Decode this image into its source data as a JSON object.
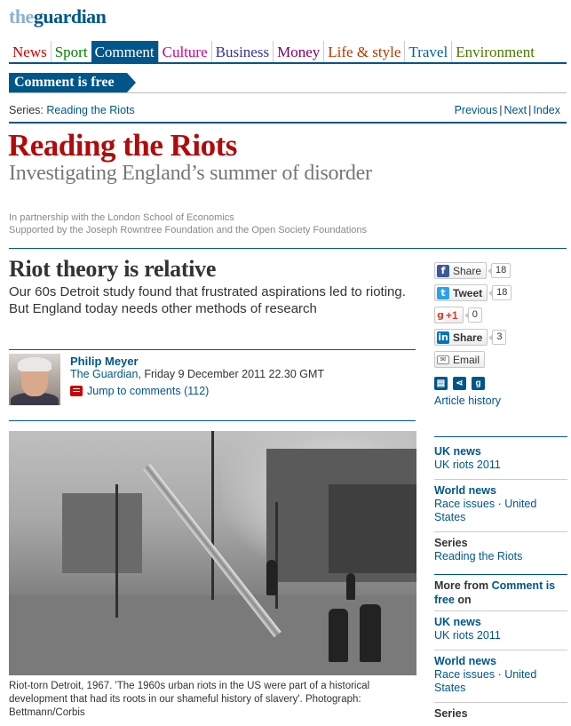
{
  "logo": {
    "the": "the",
    "guardian": "guardian"
  },
  "nav": [
    {
      "label": "News",
      "color": "#c00"
    },
    {
      "label": "Sport",
      "color": "#008000"
    },
    {
      "label": "Comment",
      "color": "#005689",
      "active": true
    },
    {
      "label": "Culture",
      "color": "#d1008b"
    },
    {
      "label": "Business",
      "color": "#333399"
    },
    {
      "label": "Money",
      "color": "#7d0068"
    },
    {
      "label": "Life & style",
      "color": "#ad3c00"
    },
    {
      "label": "Travel",
      "color": "#0061a6"
    },
    {
      "label": "Environment",
      "color": "#4a7801"
    }
  ],
  "section_tag": "Comment is free",
  "series_bar": {
    "label": "Series:",
    "series_link": "Reading the Riots",
    "previous": "Previous",
    "next": "Next",
    "index": "Index"
  },
  "series": {
    "title": "Reading the Riots",
    "subtitle": "Investigating England’s summer of disorder",
    "partner_line1": "In partnership with the London School of Economics",
    "partner_line2": "Supported by the Joseph Rowntree Foundation and the Open Society Foundations"
  },
  "article": {
    "headline": "Riot theory is relative",
    "standfirst": "Our 60s Detroit study found that frustrated aspirations led to rioting. But England today needs other methods of research",
    "author": "Philip Meyer",
    "publication": "The Guardian",
    "date": ", Friday 9 December 2011 22.30 GMT",
    "jump_comments": "Jump to comments (112)",
    "caption": "Riot-torn Detroit, 1967. 'The 1960s urban riots in the US were part of a historical development that had its roots in our shameful history of slavery'. Photograph: Bettmann/Corbis"
  },
  "share": {
    "facebook": {
      "label": "Share",
      "count": "18",
      "color": "#3b5998"
    },
    "twitter": {
      "label": "Tweet",
      "count": "18",
      "color": "#2aa3ef"
    },
    "google": {
      "label": "+1",
      "count": "0",
      "color": "#d73d32"
    },
    "linkedin": {
      "label": "Share",
      "count": "3",
      "color": "#0077b5"
    },
    "email": {
      "label": "Email"
    },
    "article_history": "Article history"
  },
  "sidebar": {
    "uk_news": {
      "head": "UK news",
      "link": "UK riots 2011"
    },
    "world_news": {
      "head": "World news",
      "link1": "Race issues",
      "sep": " · ",
      "link2": "United States"
    },
    "series": {
      "head": "Series",
      "link": "Reading the Riots"
    },
    "more_from": {
      "prefix": "More from ",
      "link": "Comment is free",
      "suffix": " on"
    },
    "uk_news2": {
      "head": "UK news",
      "link": "UK riots 2011"
    },
    "world_news2": {
      "head": "World news",
      "link1": "Race issues",
      "sep": " · ",
      "link2": "United States"
    },
    "series2": {
      "head": "Series"
    }
  }
}
